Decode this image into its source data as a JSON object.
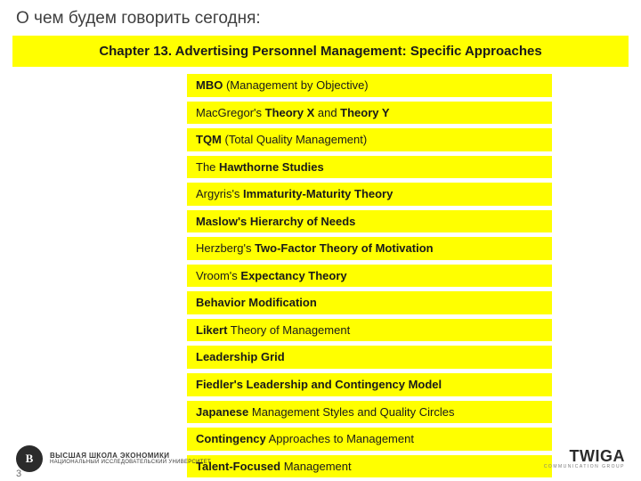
{
  "colors": {
    "banner_bg": "#ffff00",
    "item_bg": "#ffff00",
    "text": "#1a1a1a",
    "page_bg": "#ffffff"
  },
  "header": {
    "page_title": "О чем будем говорить сегодня:",
    "chapter_banner": "Chapter 13. Advertising Personnel Management: Specific Approaches"
  },
  "topics": [
    {
      "html": "<b>MBO</b> (Management by Objective)"
    },
    {
      "html": "MacGregor's <b>Theory X</b> and <b>Theory Y</b>"
    },
    {
      "html": "<b>TQM</b> (Total Quality Management)"
    },
    {
      "html": "The <b>Hawthorne Studies</b>"
    },
    {
      "html": "Argyris's <b>Immaturity-Maturity Theory</b>"
    },
    {
      "html": "<b>Maslow's Hierarchy of Needs</b>"
    },
    {
      "html": "Herzberg's <b>Two-Factor Theory of Motivation</b>"
    },
    {
      "html": "Vroom's <b>Expectancy Theory</b>"
    },
    {
      "html": "<b>Behavior Modification</b>"
    },
    {
      "html": "<b>Likert</b> Theory of Management"
    },
    {
      "html": "<b>Leadership Grid</b>"
    },
    {
      "html": "<b>Fiedler's Leadership and Contingency Model</b>"
    },
    {
      "html": "<b>Japanese</b> Management Styles and Quality Circles"
    },
    {
      "html": "<b>Contingency</b> Approaches to Management"
    },
    {
      "html": "<b>Talent-Focused</b> Management"
    }
  ],
  "footer": {
    "hse_glyph": "В",
    "hse_line1": "ВЫСШАЯ ШКОЛА ЭКОНОМИКИ",
    "hse_line2": "НАЦИОНАЛЬНЫЙ ИССЛЕДОВАТЕЛЬСКИЙ УНИВЕРСИТЕТ",
    "page_number": "3",
    "twiga_top": "TWIGA",
    "twiga_bot": "COMMUNICATION GROUP"
  }
}
